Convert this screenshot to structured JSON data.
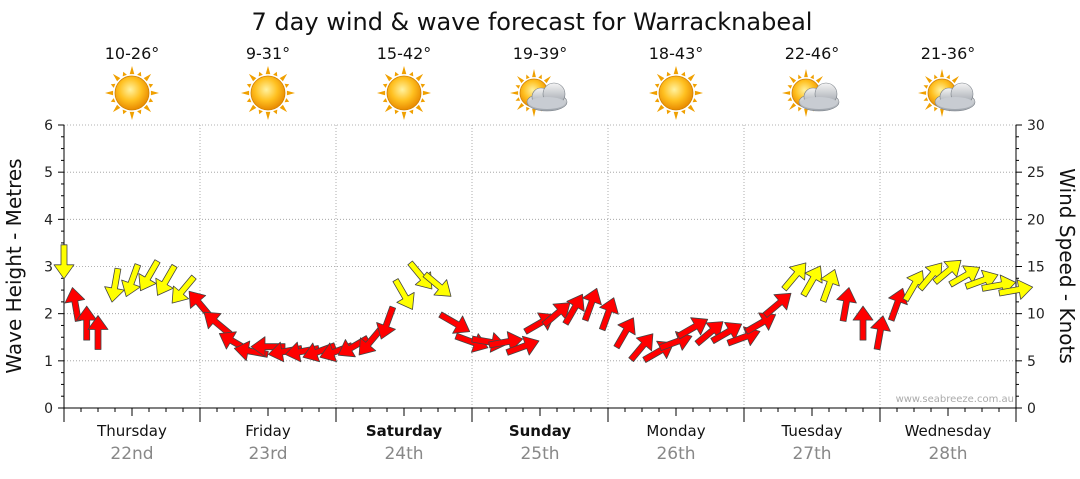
{
  "chart_data": {
    "type": "line",
    "title": "7 day wind & wave forecast for Warracknabeal",
    "y_left_label": "Wave Height - Metres",
    "y_right_label": "Wind Speed - Knots",
    "y_left_ticks": [
      "0",
      "1",
      "2",
      "3",
      "4",
      "5",
      "6"
    ],
    "y_right_ticks": [
      "0",
      "5",
      "10",
      "15",
      "20",
      "25",
      "30"
    ],
    "ylim_left": [
      0,
      6
    ],
    "ylim_right": [
      0,
      30
    ],
    "grid": true,
    "watermark": "www.seabreeze.com.au",
    "days": [
      {
        "weekday": "Thursday",
        "date": "22nd",
        "temp": "10-26°",
        "icon": "sun-icon",
        "bold": false
      },
      {
        "weekday": "Friday",
        "date": "23rd",
        "temp": "9-31°",
        "icon": "sun-icon",
        "bold": false
      },
      {
        "weekday": "Saturday",
        "date": "24th",
        "temp": "15-42°",
        "icon": "sun-icon",
        "bold": true
      },
      {
        "weekday": "Sunday",
        "date": "25th",
        "temp": "19-39°",
        "icon": "sun-cloud-icon",
        "bold": true
      },
      {
        "weekday": "Monday",
        "date": "26th",
        "temp": "18-43°",
        "icon": "sun-icon",
        "bold": false
      },
      {
        "weekday": "Tuesday",
        "date": "27th",
        "temp": "22-46°",
        "icon": "sun-cloud-icon",
        "bold": false
      },
      {
        "weekday": "Wednesday",
        "date": "28th",
        "temp": "21-36°",
        "icon": "sun-cloud-icon",
        "bold": false
      }
    ],
    "colors": {
      "strong": "#ffff00",
      "moderate": "#ff0000",
      "outline": "#444444",
      "grid": "#999999"
    },
    "series": [
      {
        "name": "Wind Speed (knots)",
        "axis": "right",
        "x_hours": [
          0,
          2,
          4,
          6,
          9,
          12,
          15,
          18,
          21,
          24,
          27,
          30,
          33,
          36,
          39,
          42,
          45,
          48,
          51,
          54,
          57,
          60,
          63,
          66,
          69,
          72,
          75,
          78,
          81,
          84,
          87,
          90,
          93,
          96,
          99,
          102,
          105,
          108,
          111,
          114,
          117,
          120,
          123,
          126,
          129,
          132,
          135,
          138,
          141,
          144,
          147,
          150,
          153,
          156,
          159,
          162,
          165,
          168
        ],
        "values": [
          15.5,
          11,
          9,
          8,
          13,
          13.5,
          14,
          13.5,
          12.5,
          11,
          9,
          7,
          6,
          6.5,
          6,
          6,
          6,
          6,
          6.5,
          7,
          9,
          12,
          14,
          13,
          9,
          7,
          7,
          7,
          6.5,
          9,
          10,
          10.5,
          11,
          10,
          8,
          6.5,
          6,
          7,
          8.5,
          8,
          8,
          7.5,
          9,
          11,
          14,
          13.5,
          13,
          11,
          9,
          8,
          11,
          13,
          14,
          14.5,
          14,
          13.5,
          13,
          12.5
        ],
        "directions_deg": [
          0,
          170,
          180,
          180,
          10,
          20,
          30,
          30,
          40,
          140,
          130,
          120,
          100,
          90,
          80,
          80,
          70,
          70,
          60,
          40,
          20,
          330,
          320,
          310,
          300,
          290,
          280,
          260,
          250,
          240,
          230,
          210,
          200,
          200,
          210,
          220,
          240,
          250,
          240,
          230,
          240,
          250,
          240,
          230,
          220,
          210,
          200,
          190,
          180,
          190,
          200,
          210,
          220,
          230,
          240,
          250,
          260,
          260
        ]
      }
    ]
  }
}
